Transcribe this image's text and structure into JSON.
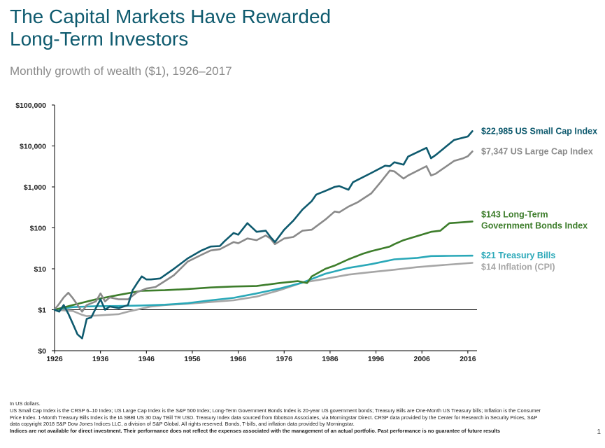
{
  "title_line1": "The Capital Markets Have Rewarded",
  "title_line2": "Long-Term Investors",
  "subtitle": "Monthly growth of wealth ($1), 1926–2017",
  "footnotes": {
    "line1": "In US dollars.",
    "line2": "US Small Cap Index is the CRSP 6–10 Index; US Large Cap Index is the S&P 500 Index; Long-Term Government Bonds Index is 20-year US government bonds; Treasury Bills are One-Month US Treasury bills; Inflation is the Consumer",
    "line3": "Price Index. 1-Month Treasury Bills Index is the IA SBBI US 30 Day TBill TR USD. Treasury Index data sourced from Ibbotson Associates, via Morningstar Direct. CRSP data provided by the Center for Research in Security Prices, S&P",
    "line4": "data copyright 2018 S&P Dow Jones Indices LLC, a division of S&P Global. All rights reserved. Bonds, T-bills, and inflation data provided by Morningstar.",
    "line5": "Indices are not available for direct investment. Their performance does not reflect the expenses associated with the management of an actual portfolio. Past performance is no guarantee of future results"
  },
  "page_number": "1",
  "chart_data": {
    "type": "line",
    "title": "Monthly growth of wealth ($1), 1926–2017",
    "xlabel": "",
    "ylabel": "",
    "y_scale": "log",
    "xlim": [
      1926,
      2018
    ],
    "ylim": [
      0.1,
      100000
    ],
    "x_ticks": [
      "1926",
      "1936",
      "1946",
      "1956",
      "1966",
      "1976",
      "1986",
      "1996",
      "2006",
      "2016"
    ],
    "y_ticks": [
      {
        "value": 0.1,
        "label": "$0"
      },
      {
        "value": 1,
        "label": "$1"
      },
      {
        "value": 10,
        "label": "$10"
      },
      {
        "value": 100,
        "label": "$100"
      },
      {
        "value": 1000,
        "label": "$1,000"
      },
      {
        "value": 10000,
        "label": "$10,000"
      },
      {
        "value": 100000,
        "label": "$100,000"
      }
    ],
    "baseline": 1,
    "grid": false,
    "legend": "direct labels at line ends",
    "series": [
      {
        "name": "US Small Cap Index",
        "label_lines": [
          "$22,985 US Small Cap Index"
        ],
        "color": "#0e5a6e",
        "x": [
          1926,
          1927,
          1928,
          1929,
          1930,
          1931,
          1932,
          1933,
          1934,
          1935,
          1936,
          1937,
          1938,
          1940,
          1942,
          1943,
          1944,
          1945,
          1946,
          1947,
          1949,
          1952,
          1955,
          1958,
          1960,
          1962,
          1963,
          1965,
          1966,
          1968,
          1970,
          1972,
          1973,
          1974,
          1976,
          1978,
          1980,
          1982,
          1983,
          1985,
          1987,
          1988,
          1990,
          1991,
          1995,
          1998,
          1999,
          2000,
          2002,
          2003,
          2007,
          2008,
          2009,
          2013,
          2015,
          2016,
          2017
        ],
        "y": [
          1.0,
          0.9,
          1.3,
          0.8,
          0.45,
          0.25,
          0.2,
          0.6,
          0.65,
          1.1,
          1.8,
          1.0,
          1.2,
          1.1,
          1.3,
          3.0,
          4.5,
          6.5,
          5.5,
          5.5,
          5.8,
          10.0,
          18.0,
          28.0,
          35.0,
          36.0,
          47.0,
          75.0,
          68.0,
          130.0,
          80.0,
          85.0,
          60.0,
          45.0,
          90.0,
          150.0,
          280.0,
          450.0,
          650.0,
          800.0,
          1000.0,
          1050.0,
          850.0,
          1300.0,
          2200.0,
          3300.0,
          3200.0,
          4000.0,
          3500.0,
          5500.0,
          9000.0,
          5000.0,
          6000.0,
          14000.0,
          16000.0,
          17000.0,
          22985.0
        ]
      },
      {
        "name": "US Large Cap Index",
        "label_lines": [
          "$7,347 US Large Cap Index"
        ],
        "color": "#8a8a8a",
        "x": [
          1926,
          1927,
          1928,
          1929,
          1930,
          1932,
          1933,
          1935,
          1936,
          1937,
          1938,
          1940,
          1942,
          1944,
          1946,
          1948,
          1950,
          1952,
          1955,
          1958,
          1960,
          1962,
          1965,
          1966,
          1968,
          1970,
          1972,
          1973,
          1974,
          1976,
          1978,
          1980,
          1982,
          1985,
          1987,
          1988,
          1990,
          1992,
          1995,
          1997,
          1999,
          2000,
          2002,
          2003,
          2007,
          2008,
          2009,
          2013,
          2015,
          2016,
          2017
        ],
        "y": [
          1.0,
          1.4,
          2.0,
          2.6,
          1.9,
          0.9,
          1.3,
          1.6,
          2.5,
          1.6,
          2.0,
          1.8,
          1.8,
          2.7,
          3.3,
          3.6,
          5.0,
          7.0,
          15.0,
          22.0,
          28.0,
          30.0,
          45.0,
          42.0,
          55.0,
          50.0,
          65.0,
          55.0,
          40.0,
          55.0,
          60.0,
          85.0,
          90.0,
          160.0,
          250.0,
          240.0,
          330.0,
          420.0,
          700.0,
          1300.0,
          2500.0,
          2400.0,
          1600.0,
          1900.0,
          3200.0,
          1900.0,
          2100.0,
          4300.0,
          5000.0,
          5600.0,
          7347.0
        ]
      },
      {
        "name": "Long-Term Government Bonds Index",
        "label_lines": [
          "$143 Long-Term",
          "Government Bonds Index"
        ],
        "color": "#3d7d2b",
        "x": [
          1926,
          1930,
          1935,
          1940,
          1945,
          1950,
          1955,
          1960,
          1965,
          1970,
          1975,
          1979,
          1981,
          1982,
          1985,
          1987,
          1990,
          1993,
          1995,
          1999,
          2000,
          2002,
          2008,
          2010,
          2012,
          2014,
          2017
        ],
        "y": [
          1.0,
          1.3,
          1.8,
          2.3,
          2.9,
          3.0,
          3.2,
          3.5,
          3.7,
          3.8,
          4.5,
          5.0,
          4.5,
          6.5,
          10.0,
          12.0,
          17.0,
          23.0,
          27.0,
          35.0,
          40.0,
          50.0,
          80.0,
          85.0,
          130.0,
          135.0,
          143.0
        ]
      },
      {
        "name": "Treasury Bills",
        "label_lines": [
          "$21 Treasury Bills"
        ],
        "color": "#2aa8b8",
        "x": [
          1926,
          1930,
          1935,
          1940,
          1945,
          1950,
          1955,
          1960,
          1965,
          1970,
          1975,
          1980,
          1985,
          1990,
          1995,
          2000,
          2005,
          2008,
          2012,
          2017
        ],
        "y": [
          1.0,
          1.16,
          1.22,
          1.23,
          1.27,
          1.33,
          1.45,
          1.7,
          1.95,
          2.5,
          3.3,
          4.6,
          7.6,
          10.5,
          13.0,
          17.0,
          18.5,
          20.5,
          20.7,
          21.0
        ]
      },
      {
        "name": "Inflation (CPI)",
        "label_lines": [
          "$14 Inflation (CPI)"
        ],
        "color": "#a6a6a6",
        "x": [
          1926,
          1930,
          1932,
          1933,
          1940,
          1942,
          1947,
          1950,
          1955,
          1960,
          1965,
          1970,
          1975,
          1980,
          1985,
          1990,
          1995,
          2000,
          2005,
          2010,
          2017
        ],
        "y": [
          1.0,
          0.93,
          0.75,
          0.7,
          0.78,
          0.9,
          1.2,
          1.3,
          1.4,
          1.55,
          1.7,
          2.1,
          3.0,
          4.6,
          5.7,
          7.2,
          8.3,
          9.5,
          11.0,
          12.2,
          14.0
        ]
      }
    ]
  }
}
